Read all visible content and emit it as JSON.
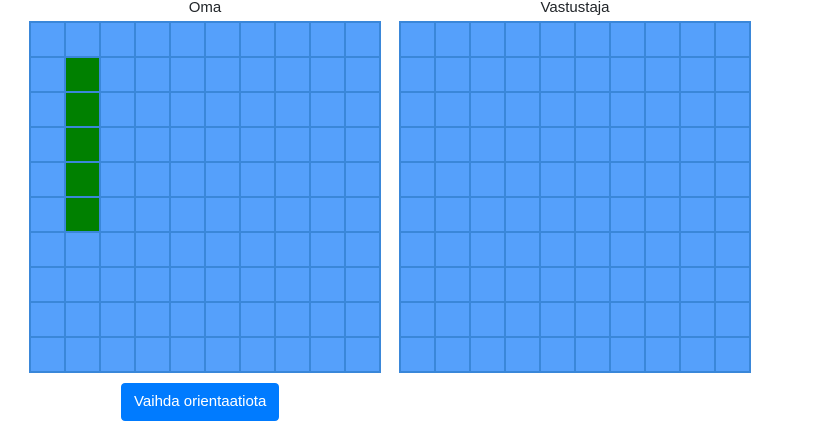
{
  "boards": [
    {
      "title": "Oma",
      "rows": 10,
      "cols": 10,
      "ship_cells": [
        [
          1,
          1
        ],
        [
          2,
          1
        ],
        [
          3,
          1
        ],
        [
          4,
          1
        ],
        [
          5,
          1
        ]
      ]
    },
    {
      "title": "Vastustaja",
      "rows": 10,
      "cols": 10,
      "ship_cells": []
    }
  ],
  "controls": {
    "rotate_label": "Vaihda orientaatiota"
  },
  "colors": {
    "water": "#55a0fb",
    "ship": "#008000",
    "button": "#007bff"
  }
}
